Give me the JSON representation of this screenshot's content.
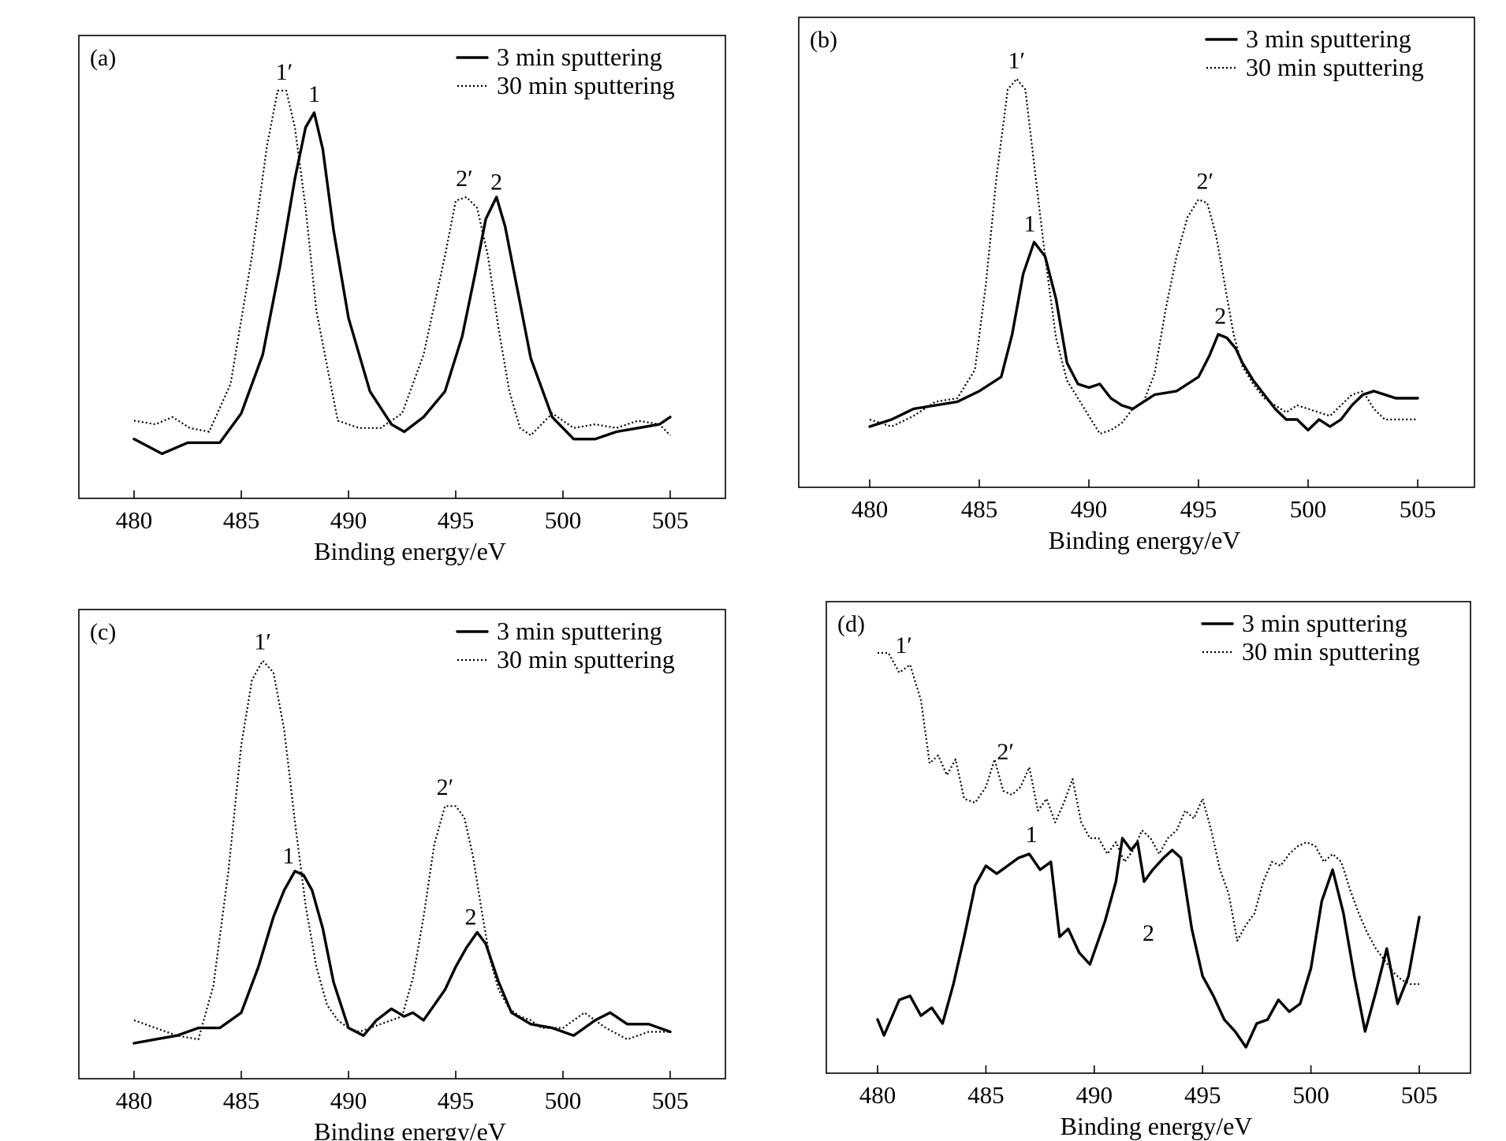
{
  "colors": {
    "background": "#ffffff",
    "ink": "#000000"
  },
  "chart_data": [
    {
      "type": "line",
      "panel_label": "(a)",
      "xlabel": "Binding energy/eV",
      "ylabel": "",
      "xlim": [
        480,
        505
      ],
      "x_ticks": [
        "480",
        "485",
        "490",
        "495",
        "500",
        "505"
      ],
      "ylim": [
        0,
        1
      ],
      "grid": false,
      "legend_position": "top-right",
      "series": [
        {
          "name": "3 min sputtering",
          "style": "solid",
          "x": [
            480,
            481.3,
            482.5,
            484,
            485,
            486,
            486.8,
            487.5,
            488,
            488.4,
            488.8,
            489.3,
            490,
            491,
            492,
            492.6,
            493.5,
            494.5,
            495.3,
            495.9,
            496.4,
            496.9,
            497.3,
            497.8,
            498.5,
            499.5,
            500.5,
            501.5,
            502.5,
            503.5,
            504.5,
            505
          ],
          "y": [
            0.05,
            0.01,
            0.04,
            0.04,
            0.12,
            0.28,
            0.52,
            0.76,
            0.9,
            0.94,
            0.84,
            0.62,
            0.38,
            0.18,
            0.09,
            0.07,
            0.11,
            0.18,
            0.33,
            0.5,
            0.65,
            0.71,
            0.63,
            0.48,
            0.27,
            0.11,
            0.05,
            0.05,
            0.07,
            0.08,
            0.09,
            0.11
          ]
        },
        {
          "name": "30 min sputtering",
          "style": "dotted",
          "x": [
            480,
            481,
            481.8,
            482.6,
            483.5,
            484.5,
            485.5,
            486.2,
            486.7,
            487.1,
            487.5,
            488,
            488.5,
            489.5,
            490.5,
            491.5,
            492.5,
            493.5,
            494.5,
            495,
            495.5,
            496,
            496.5,
            497,
            497.5,
            498,
            498.5,
            499.5,
            500.5,
            501.5,
            502.5,
            503.5,
            504.5,
            505
          ],
          "y": [
            0.1,
            0.09,
            0.11,
            0.08,
            0.07,
            0.2,
            0.55,
            0.85,
            1.0,
            1.0,
            0.9,
            0.68,
            0.4,
            0.1,
            0.08,
            0.08,
            0.12,
            0.28,
            0.55,
            0.7,
            0.71,
            0.68,
            0.55,
            0.35,
            0.18,
            0.08,
            0.06,
            0.12,
            0.08,
            0.09,
            0.08,
            0.1,
            0.09,
            0.06
          ]
        }
      ],
      "annotations": [
        {
          "text": "1′",
          "x": 487.0,
          "y": 1.03
        },
        {
          "text": "1",
          "x": 488.4,
          "y": 0.97
        },
        {
          "text": "2′",
          "x": 495.4,
          "y": 0.74
        },
        {
          "text": "2",
          "x": 496.9,
          "y": 0.73
        }
      ]
    },
    {
      "type": "line",
      "panel_label": "(b)",
      "xlabel": "Binding energy/eV",
      "ylabel": "",
      "xlim": [
        480,
        505
      ],
      "x_ticks": [
        "480",
        "485",
        "490",
        "495",
        "500",
        "505"
      ],
      "ylim": [
        0,
        1
      ],
      "grid": false,
      "legend_position": "top-right",
      "series": [
        {
          "name": "3 min sputtering",
          "style": "solid",
          "x": [
            480,
            481,
            482,
            483,
            484,
            485,
            486,
            486.5,
            487,
            487.5,
            488,
            488.5,
            489,
            489.5,
            490,
            490.5,
            491,
            491.5,
            492,
            493,
            494,
            495,
            495.5,
            495.9,
            496.3,
            496.7,
            497,
            497.5,
            498,
            498.5,
            499,
            499.5,
            500,
            500.5,
            501,
            501.5,
            502,
            502.5,
            503,
            503.5,
            504,
            505
          ],
          "y": [
            0.02,
            0.04,
            0.07,
            0.08,
            0.09,
            0.12,
            0.16,
            0.28,
            0.45,
            0.54,
            0.5,
            0.38,
            0.2,
            0.14,
            0.13,
            0.14,
            0.1,
            0.08,
            0.07,
            0.11,
            0.12,
            0.16,
            0.22,
            0.28,
            0.27,
            0.24,
            0.2,
            0.15,
            0.11,
            0.07,
            0.04,
            0.04,
            0.01,
            0.04,
            0.02,
            0.04,
            0.08,
            0.11,
            0.12,
            0.11,
            0.1,
            0.1
          ]
        },
        {
          "name": "30 min sputtering",
          "style": "dotted",
          "x": [
            480,
            481,
            482,
            483,
            484,
            484.8,
            485.3,
            485.8,
            486.3,
            486.7,
            487.1,
            487.5,
            488,
            488.5,
            489,
            489.5,
            490,
            490.5,
            491,
            491.5,
            492,
            492.5,
            493,
            493.5,
            494,
            494.5,
            495,
            495.4,
            495.8,
            496.2,
            496.6,
            497,
            497.5,
            498,
            498.5,
            499,
            499.5,
            500,
            501,
            502,
            502.5,
            503,
            503.5,
            504,
            505
          ],
          "y": [
            0.04,
            0.02,
            0.05,
            0.09,
            0.1,
            0.18,
            0.42,
            0.73,
            0.97,
            1.0,
            0.97,
            0.76,
            0.5,
            0.27,
            0.15,
            0.1,
            0.05,
            0.0,
            0.01,
            0.03,
            0.07,
            0.09,
            0.17,
            0.35,
            0.5,
            0.61,
            0.66,
            0.65,
            0.56,
            0.42,
            0.28,
            0.19,
            0.14,
            0.1,
            0.08,
            0.06,
            0.08,
            0.07,
            0.05,
            0.11,
            0.12,
            0.07,
            0.04,
            0.04,
            0.04
          ]
        }
      ],
      "annotations": [
        {
          "text": "1′",
          "x": 486.7,
          "y": 1.03
        },
        {
          "text": "1",
          "x": 487.3,
          "y": 0.57
        },
        {
          "text": "2′",
          "x": 495.3,
          "y": 0.69
        },
        {
          "text": "2",
          "x": 496.0,
          "y": 0.31
        }
      ]
    },
    {
      "type": "line",
      "panel_label": "(c)",
      "xlabel": "Binding energy/eV",
      "ylabel": "",
      "xlim": [
        480,
        505
      ],
      "x_ticks": [
        "480",
        "485",
        "490",
        "495",
        "500",
        "505"
      ],
      "ylim": [
        0,
        1
      ],
      "grid": false,
      "legend_position": "top-right",
      "series": [
        {
          "name": "3 min sputtering",
          "style": "solid",
          "x": [
            480,
            481,
            482,
            483,
            484,
            485,
            485.8,
            486.5,
            487,
            487.5,
            487.9,
            488.3,
            488.8,
            489.3,
            490,
            490.7,
            491.3,
            492,
            492.6,
            493,
            493.5,
            494,
            494.5,
            495,
            495.5,
            496,
            496.4,
            497,
            497.6,
            498.5,
            499.5,
            500.5,
            501.5,
            502.2,
            503,
            504,
            505
          ],
          "y": [
            0.0,
            0.01,
            0.02,
            0.04,
            0.04,
            0.08,
            0.2,
            0.33,
            0.4,
            0.45,
            0.44,
            0.4,
            0.3,
            0.16,
            0.04,
            0.02,
            0.06,
            0.09,
            0.07,
            0.08,
            0.06,
            0.1,
            0.14,
            0.2,
            0.25,
            0.29,
            0.26,
            0.16,
            0.08,
            0.05,
            0.04,
            0.02,
            0.06,
            0.08,
            0.05,
            0.05,
            0.03
          ]
        },
        {
          "name": "30 min sputtering",
          "style": "dotted",
          "x": [
            480,
            481,
            482,
            483,
            483.7,
            484.4,
            485,
            485.5,
            486,
            486.5,
            487,
            487.5,
            488,
            488.5,
            489,
            489.5,
            490,
            490.5,
            491.5,
            492.5,
            493,
            493.5,
            494,
            494.5,
            495,
            495.4,
            495.8,
            496.2,
            496.6,
            497,
            497.5,
            498,
            498.5,
            499,
            500,
            501,
            502,
            503,
            504,
            505
          ],
          "y": [
            0.06,
            0.04,
            0.02,
            0.01,
            0.15,
            0.45,
            0.78,
            0.95,
            1.0,
            0.97,
            0.82,
            0.58,
            0.36,
            0.2,
            0.1,
            0.06,
            0.04,
            0.03,
            0.05,
            0.07,
            0.17,
            0.33,
            0.52,
            0.62,
            0.62,
            0.59,
            0.49,
            0.35,
            0.22,
            0.14,
            0.09,
            0.07,
            0.06,
            0.04,
            0.04,
            0.08,
            0.04,
            0.01,
            0.03,
            0.03
          ]
        }
      ],
      "annotations": [
        {
          "text": "1′",
          "x": 486.0,
          "y": 1.03
        },
        {
          "text": "1",
          "x": 487.2,
          "y": 0.47
        },
        {
          "text": "2′",
          "x": 494.5,
          "y": 0.65
        },
        {
          "text": "2",
          "x": 495.7,
          "y": 0.31
        }
      ]
    },
    {
      "type": "line",
      "panel_label": "(d)",
      "xlabel": "Binding energy/eV",
      "ylabel": "",
      "xlim": [
        480,
        505
      ],
      "x_ticks": [
        "480",
        "485",
        "490",
        "495",
        "500",
        "505"
      ],
      "ylim": [
        0,
        1
      ],
      "grid": false,
      "legend_position": "top-right",
      "series": [
        {
          "name": "3 min sputtering",
          "style": "solid",
          "x": [
            480,
            480.3,
            481,
            481.5,
            482,
            482.5,
            483,
            483.5,
            484,
            484.5,
            485,
            485.5,
            486,
            486.5,
            487,
            487.5,
            488,
            488.4,
            488.8,
            489.3,
            489.8,
            490.5,
            491,
            491.3,
            491.7,
            492,
            492.3,
            492.7,
            493.2,
            493.6,
            494,
            494.5,
            495,
            495.5,
            496,
            496.5,
            497,
            497.5,
            498,
            498.5,
            499,
            499.5,
            500,
            500.5,
            501,
            501.5,
            502,
            502.5,
            503,
            503.5,
            504,
            504.5,
            505
          ],
          "y": [
            0.07,
            0.03,
            0.12,
            0.13,
            0.08,
            0.1,
            0.06,
            0.16,
            0.28,
            0.41,
            0.46,
            0.44,
            0.46,
            0.48,
            0.49,
            0.45,
            0.47,
            0.28,
            0.3,
            0.24,
            0.21,
            0.32,
            0.42,
            0.53,
            0.5,
            0.52,
            0.42,
            0.45,
            0.48,
            0.5,
            0.48,
            0.3,
            0.18,
            0.13,
            0.07,
            0.04,
            0.0,
            0.06,
            0.07,
            0.12,
            0.09,
            0.11,
            0.2,
            0.37,
            0.45,
            0.34,
            0.18,
            0.04,
            0.14,
            0.25,
            0.11,
            0.18,
            0.33
          ]
        },
        {
          "name": "30 min sputtering",
          "style": "dotted",
          "x": [
            480,
            480.5,
            481,
            481.5,
            482,
            482.4,
            482.8,
            483.2,
            483.6,
            484,
            484.5,
            485,
            485.4,
            485.8,
            486.2,
            486.6,
            487,
            487.4,
            487.8,
            488.2,
            488.6,
            489,
            489.4,
            489.8,
            490.2,
            490.6,
            491,
            491.4,
            491.8,
            492.2,
            492.6,
            493,
            493.4,
            493.8,
            494.2,
            494.6,
            495,
            495.4,
            495.8,
            496.2,
            496.6,
            497,
            497.4,
            497.8,
            498.2,
            498.6,
            499,
            499.4,
            499.8,
            500.2,
            500.6,
            501,
            501.4,
            501.8,
            502.2,
            502.6,
            503,
            503.4,
            503.8,
            504.2,
            504.6,
            505
          ],
          "y": [
            1.0,
            1.0,
            0.95,
            0.97,
            0.88,
            0.72,
            0.74,
            0.69,
            0.73,
            0.63,
            0.62,
            0.66,
            0.73,
            0.65,
            0.64,
            0.66,
            0.71,
            0.6,
            0.63,
            0.57,
            0.62,
            0.68,
            0.57,
            0.53,
            0.53,
            0.49,
            0.52,
            0.47,
            0.5,
            0.55,
            0.53,
            0.49,
            0.53,
            0.55,
            0.6,
            0.58,
            0.63,
            0.55,
            0.45,
            0.39,
            0.27,
            0.31,
            0.34,
            0.42,
            0.47,
            0.46,
            0.49,
            0.51,
            0.52,
            0.51,
            0.47,
            0.49,
            0.47,
            0.4,
            0.34,
            0.29,
            0.25,
            0.22,
            0.19,
            0.17,
            0.16,
            0.16
          ]
        }
      ],
      "annotations": [
        {
          "text": "1′",
          "x": 481.2,
          "y": 1.0
        },
        {
          "text": "2′",
          "x": 485.9,
          "y": 0.73
        },
        {
          "text": "1",
          "x": 487.1,
          "y": 0.52
        },
        {
          "text": "2",
          "x": 492.5,
          "y": 0.27
        }
      ]
    }
  ]
}
